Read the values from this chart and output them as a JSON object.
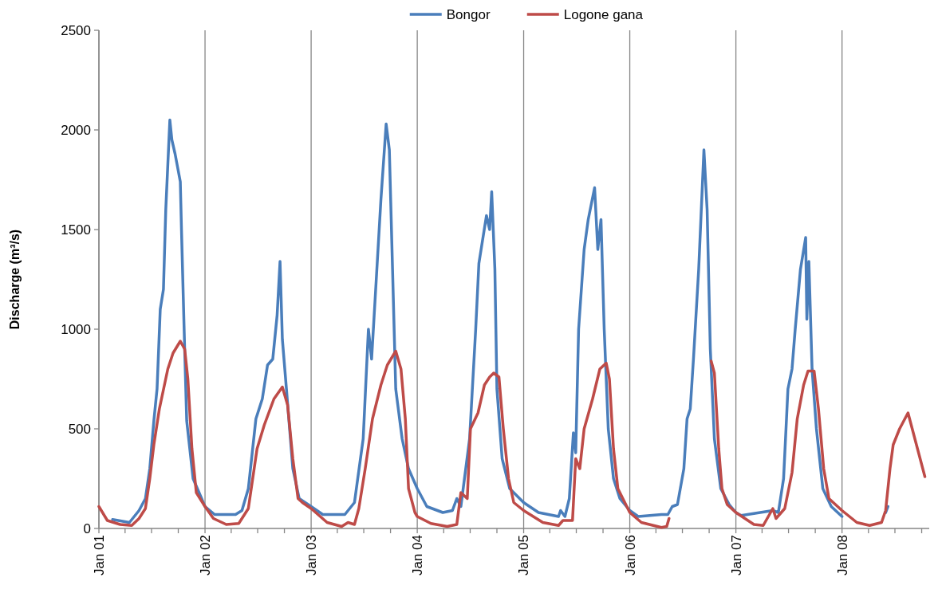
{
  "chart_data": {
    "type": "line",
    "ylabel": "Discharge (m³/s)",
    "legend": "top",
    "grid": "x",
    "line_style": "solid",
    "marker": "none",
    "xlim": [
      "2001-01-01",
      "2008-10-27"
    ],
    "xticks": [
      {
        "value": "2001-01-01",
        "label": "Jan 01"
      },
      {
        "value": "2001-04-01",
        "label": null
      },
      {
        "value": "2001-07-01",
        "label": null
      },
      {
        "value": "2001-10-01",
        "label": null
      },
      {
        "value": "2002-01-01",
        "label": "Jan 02"
      },
      {
        "value": "2002-04-01",
        "label": null
      },
      {
        "value": "2002-07-01",
        "label": null
      },
      {
        "value": "2002-10-01",
        "label": null
      },
      {
        "value": "2003-01-01",
        "label": "Jan 03"
      },
      {
        "value": "2003-04-01",
        "label": null
      },
      {
        "value": "2003-07-01",
        "label": null
      },
      {
        "value": "2003-10-01",
        "label": null
      },
      {
        "value": "2004-01-01",
        "label": "Jan 04"
      },
      {
        "value": "2004-04-01",
        "label": null
      },
      {
        "value": "2004-07-01",
        "label": null
      },
      {
        "value": "2004-10-01",
        "label": null
      },
      {
        "value": "2005-01-01",
        "label": "Jan 05"
      },
      {
        "value": "2005-04-01",
        "label": null
      },
      {
        "value": "2005-07-01",
        "label": null
      },
      {
        "value": "2005-10-01",
        "label": null
      },
      {
        "value": "2006-01-01",
        "label": "Jan 06"
      },
      {
        "value": "2006-04-01",
        "label": null
      },
      {
        "value": "2006-07-01",
        "label": null
      },
      {
        "value": "2006-10-01",
        "label": null
      },
      {
        "value": "2007-01-01",
        "label": "Jan 07"
      },
      {
        "value": "2007-04-01",
        "label": null
      },
      {
        "value": "2007-07-01",
        "label": null
      },
      {
        "value": "2007-10-01",
        "label": null
      },
      {
        "value": "2008-01-01",
        "label": "Jan 08"
      },
      {
        "value": "2008-04-01",
        "label": null
      },
      {
        "value": "2008-07-01",
        "label": null
      },
      {
        "value": "2008-10-01",
        "label": null
      }
    ],
    "ylim": [
      0,
      2500
    ],
    "yticks": [
      0,
      500,
      1000,
      1500,
      2000,
      2500
    ],
    "series": [
      {
        "name": "Bongor",
        "color": "#4a7ebb",
        "x": [
          "2001-02-17",
          "2001-04-16",
          "2001-05-19",
          "2001-06-10",
          "2001-06-25",
          "2001-07-09",
          "2001-07-20",
          "2001-07-31",
          "2001-08-11",
          "2001-08-19",
          "2001-09-02",
          "2001-09-09",
          "2001-09-20",
          "2001-10-08",
          "2001-10-12",
          "2001-10-23",
          "2001-10-30",
          "2001-11-21",
          "2002-01-01",
          "2002-02-03",
          "2002-04-16",
          "2002-05-08",
          "2002-05-30",
          "2002-06-25",
          "2002-07-17",
          "2002-08-04",
          "2002-08-22",
          "2002-09-06",
          "2002-09-16",
          "2002-09-24",
          "2002-10-08",
          "2002-10-19",
          "2002-10-30",
          "2002-11-21",
          "2003-01-01",
          "2003-02-10",
          "2003-04-27",
          "2003-05-30",
          "2003-06-29",
          "2003-07-17",
          "2003-07-28",
          "2003-08-15",
          "2003-08-29",
          "2003-09-16",
          "2003-09-27",
          "2003-10-08",
          "2003-10-19",
          "2003-11-10",
          "2003-12-02",
          "2004-01-01",
          "2004-02-03",
          "2004-03-29",
          "2004-05-01",
          "2004-05-16",
          "2004-05-30",
          "2004-06-29",
          "2004-07-20",
          "2004-07-31",
          "2004-08-26",
          "2004-09-06",
          "2004-09-13",
          "2004-09-24",
          "2004-10-01",
          "2004-10-19",
          "2004-11-14",
          "2005-01-01",
          "2005-02-21",
          "2005-05-01",
          "2005-05-08",
          "2005-05-23",
          "2005-06-07",
          "2005-06-21",
          "2005-06-29",
          "2005-07-09",
          "2005-07-28",
          "2005-08-11",
          "2005-09-02",
          "2005-09-13",
          "2005-09-24",
          "2005-10-05",
          "2005-10-19",
          "2005-11-06",
          "2005-11-28",
          "2006-01-01",
          "2006-01-30",
          "2006-04-20",
          "2006-05-12",
          "2006-05-27",
          "2006-06-14",
          "2006-07-06",
          "2006-07-17",
          "2006-07-28",
          "2006-08-08",
          "2006-08-26",
          "2006-09-13",
          "2006-09-24",
          "2006-10-05",
          "2006-10-19",
          "2006-11-10",
          "2006-12-09",
          "2007-01-01",
          "2007-01-19",
          "2007-05-08",
          "2007-05-27",
          "2007-06-14",
          "2007-06-29",
          "2007-07-13",
          "2007-07-24",
          "2007-08-11",
          "2007-08-29",
          "2007-09-02",
          "2007-09-09",
          "2007-09-20",
          "2007-10-05",
          "2007-10-27",
          "2007-11-25",
          "2008-01-01",
          "2008-01-10",
          "2008-05-30",
          "2008-06-07"
        ],
        "values": [
          45,
          30,
          90,
          150,
          300,
          540,
          700,
          1100,
          1200,
          1600,
          2050,
          1950,
          1880,
          1740,
          1500,
          900,
          540,
          250,
          110,
          70,
          70,
          90,
          200,
          550,
          650,
          820,
          850,
          1070,
          1340,
          950,
          700,
          500,
          300,
          150,
          110,
          70,
          70,
          130,
          450,
          1000,
          850,
          1300,
          1650,
          2030,
          1900,
          1300,
          700,
          450,
          300,
          200,
          110,
          80,
          90,
          150,
          110,
          450,
          1000,
          1330,
          1570,
          1500,
          1690,
          1300,
          700,
          350,
          200,
          130,
          80,
          60,
          90,
          60,
          150,
          480,
          380,
          1000,
          1400,
          1550,
          1710,
          1400,
          1550,
          1000,
          500,
          250,
          150,
          90,
          60,
          70,
          70,
          110,
          120,
          300,
          550,
          600,
          850,
          1300,
          1900,
          1600,
          900,
          450,
          200,
          120,
          80,
          65,
          90,
          80,
          250,
          700,
          800,
          1000,
          1300,
          1460,
          1050,
          1340,
          800,
          500,
          200,
          110,
          60,
          null,
          80,
          110
        ]
      },
      {
        "name": "Logone gana",
        "color": "#be4b48",
        "x": [
          "2001-01-01",
          "2001-01-30",
          "2001-03-15",
          "2001-04-24",
          "2001-05-19",
          "2001-06-10",
          "2001-06-25",
          "2001-07-09",
          "2001-07-28",
          "2001-08-26",
          "2001-09-13",
          "2001-10-08",
          "2001-10-23",
          "2001-11-03",
          "2001-11-17",
          "2001-12-02",
          "2002-01-01",
          "2002-01-30",
          "2002-03-15",
          "2002-04-27",
          "2002-05-30",
          "2002-06-29",
          "2002-07-24",
          "2002-08-26",
          "2002-09-24",
          "2002-10-12",
          "2002-10-30",
          "2002-11-17",
          "2002-12-02",
          "2003-01-01",
          "2003-02-25",
          "2003-04-16",
          "2003-05-08",
          "2003-05-30",
          "2003-06-14",
          "2003-07-06",
          "2003-07-31",
          "2003-08-29",
          "2003-09-20",
          "2003-10-19",
          "2003-11-06",
          "2003-11-21",
          "2003-12-02",
          "2003-12-24",
          "2004-01-01",
          "2004-02-17",
          "2004-04-13",
          "2004-05-16",
          "2004-05-30",
          "2004-06-21",
          "2004-07-02",
          "2004-07-28",
          "2004-08-19",
          "2004-09-06",
          "2004-09-20",
          "2004-10-08",
          "2004-10-23",
          "2004-11-10",
          "2004-11-28",
          "2005-01-01",
          "2005-03-08",
          "2005-05-01",
          "2005-05-16",
          "2005-06-18",
          "2005-06-29",
          "2005-07-13",
          "2005-07-28",
          "2005-08-26",
          "2005-09-20",
          "2005-10-12",
          "2005-10-23",
          "2005-11-06",
          "2005-11-21",
          "2006-01-01",
          "2006-02-10",
          "2006-04-20",
          "2006-05-08",
          "2006-05-16",
          "2006-06-01",
          "2006-10-08",
          "2006-10-19",
          "2006-11-03",
          "2006-11-14",
          "2006-12-02",
          "2007-01-01",
          "2007-03-04",
          "2007-04-05",
          "2007-05-08",
          "2007-05-19",
          "2007-06-18",
          "2007-07-13",
          "2007-07-31",
          "2007-08-22",
          "2007-09-06",
          "2007-09-27",
          "2007-10-12",
          "2007-10-30",
          "2007-11-17",
          "2008-01-01",
          "2008-02-21",
          "2008-04-05",
          "2008-05-16",
          "2008-05-30",
          "2008-06-14",
          "2008-06-25",
          "2008-07-17",
          "2008-08-15",
          "2008-10-12"
        ],
        "values": [
          110,
          40,
          20,
          15,
          50,
          100,
          250,
          420,
          600,
          800,
          880,
          940,
          900,
          750,
          400,
          180,
          110,
          50,
          20,
          25,
          100,
          400,
          520,
          650,
          710,
          620,
          350,
          150,
          130,
          100,
          30,
          10,
          30,
          20,
          100,
          300,
          550,
          720,
          820,
          890,
          800,
          550,
          200,
          80,
          60,
          25,
          10,
          20,
          180,
          150,
          500,
          580,
          720,
          760,
          780,
          760,
          500,
          250,
          130,
          90,
          30,
          15,
          40,
          40,
          350,
          300,
          500,
          650,
          800,
          830,
          750,
          400,
          200,
          80,
          30,
          5,
          10,
          50,
          null,
          840,
          780,
          400,
          200,
          120,
          80,
          20,
          15,
          100,
          50,
          100,
          280,
          550,
          720,
          790,
          790,
          600,
          300,
          150,
          90,
          30,
          15,
          30,
          90,
          300,
          420,
          500,
          580,
          260
        ]
      }
    ]
  }
}
